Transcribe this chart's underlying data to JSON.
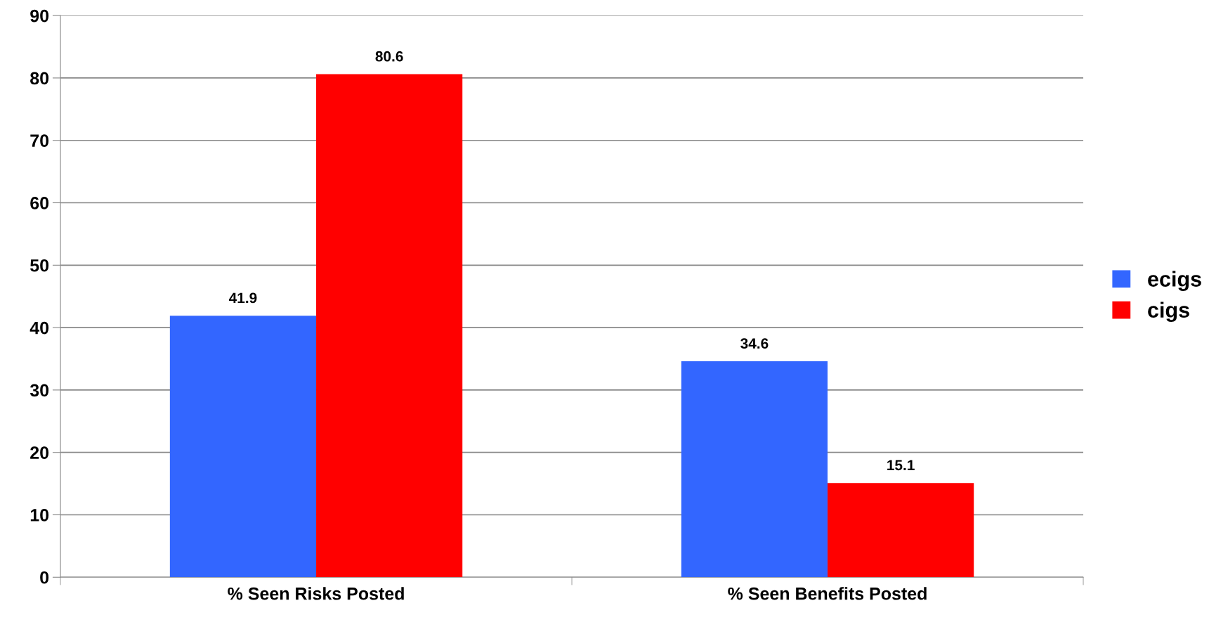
{
  "chart_data": {
    "type": "bar",
    "categories": [
      "% Seen Risks Posted",
      "% Seen Benefits Posted"
    ],
    "series": [
      {
        "name": "ecigs",
        "color": "#3366ff",
        "values": [
          41.9,
          34.6
        ]
      },
      {
        "name": "cigs",
        "color": "#ff0000",
        "values": [
          80.6,
          15.1
        ]
      }
    ],
    "ylim": [
      0,
      90
    ],
    "yticks": [
      0,
      10,
      20,
      30,
      40,
      50,
      60,
      70,
      80,
      90
    ],
    "grid": "y",
    "legend": "right",
    "data_labels": true
  }
}
